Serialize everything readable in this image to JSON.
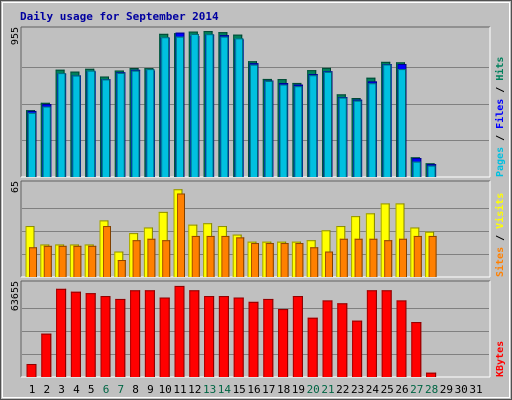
{
  "title": "Daily usage for September 2014",
  "colors": {
    "background": "#c0c0c0",
    "text_title": "#0000a0",
    "weekend_day": "#006644",
    "hits": "#00805c",
    "files": "#0000ff",
    "pages": "#00c0e0",
    "visits": "#ffff00",
    "sites": "#ff8000",
    "kbytes": "#ff0000"
  },
  "chart_data": [
    {
      "type": "bar",
      "panel": "top",
      "ylim": [
        0,
        955
      ],
      "ytick_label": "955",
      "legend_parts": [
        "Pages",
        "Files",
        "Hits"
      ],
      "legend_separator": " / ",
      "categories": [
        "1",
        "2",
        "3",
        "4",
        "5",
        "6",
        "7",
        "8",
        "9",
        "10",
        "11",
        "12",
        "13",
        "14",
        "15",
        "16",
        "17",
        "18",
        "19",
        "20",
        "21",
        "22",
        "23",
        "24",
        "25",
        "26",
        "27",
        "28",
        "29",
        "30",
        "31"
      ],
      "series": [
        {
          "name": "Hits",
          "values": [
            434,
            482,
            697,
            685,
            703,
            653,
            692,
            708,
            707,
            930,
            934,
            945,
            948,
            941,
            925,
            752,
            637,
            636,
            611,
            694,
            709,
            537,
            513,
            645,
            748,
            745,
            128,
            89,
            0,
            0,
            0
          ]
        },
        {
          "name": "Files",
          "values": [
            429,
            474,
            672,
            660,
            686,
            635,
            680,
            696,
            692,
            905,
            938,
            915,
            925,
            921,
            894,
            739,
            627,
            610,
            600,
            668,
            687,
            519,
            502,
            621,
            733,
            734,
            123,
            83,
            0,
            0,
            0
          ]
        },
        {
          "name": "Pages",
          "values": [
            417,
            458,
            675,
            659,
            691,
            634,
            676,
            691,
            701,
            908,
            912,
            929,
            928,
            912,
            901,
            730,
            624,
            601,
            590,
            661,
            683,
            516,
            496,
            609,
            731,
            701,
            100,
            74,
            0,
            0,
            0
          ]
        }
      ]
    },
    {
      "type": "bar",
      "panel": "middle",
      "ylim": [
        0,
        65
      ],
      "ytick_label": "65",
      "legend_parts": [
        "Sites",
        "Visits"
      ],
      "legend_separator": " / ",
      "series": [
        {
          "name": "Visits",
          "values": [
            36,
            23,
            23,
            23,
            23,
            40,
            18,
            31,
            35,
            46,
            62,
            37,
            38,
            36,
            30,
            25,
            25,
            25,
            25,
            26,
            33,
            36,
            43,
            45,
            52,
            52,
            35,
            32,
            0,
            0,
            0
          ]
        },
        {
          "name": "Sites",
          "values": [
            21,
            22,
            22,
            22,
            22,
            36,
            12,
            26,
            27,
            26,
            59,
            29,
            29,
            29,
            28,
            24,
            24,
            24,
            24,
            21,
            18,
            27,
            27,
            27,
            26,
            27,
            29,
            29,
            0,
            0,
            0
          ]
        }
      ]
    },
    {
      "type": "bar",
      "panel": "bottom",
      "ylim": [
        0,
        63655
      ],
      "ytick_label": "63655",
      "legend_parts": [
        "KBytes"
      ],
      "legend_separator": "",
      "series": [
        {
          "name": "KBytes",
          "values": [
            9000,
            30000,
            61000,
            59000,
            58000,
            56000,
            54000,
            60000,
            60000,
            55000,
            63000,
            60000,
            56000,
            56000,
            55000,
            52000,
            54000,
            47000,
            56000,
            41000,
            53000,
            51000,
            39000,
            60000,
            60000,
            53000,
            38000,
            3000,
            0,
            0,
            0
          ]
        }
      ]
    }
  ],
  "weekend_days": [
    6,
    7,
    13,
    14,
    20,
    21,
    27,
    28
  ]
}
